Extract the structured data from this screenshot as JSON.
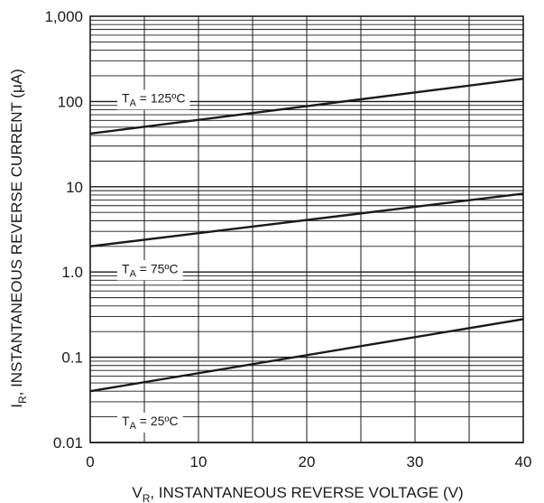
{
  "chart_data": {
    "type": "line",
    "title": "",
    "xlabel": "V",
    "xlabel_sub": "R",
    "xlabel_rest": ", INSTANTANEOUS REVERSE VOLTAGE (V)",
    "ylabel": "I",
    "ylabel_sub": "R",
    "ylabel_rest": ", INSTANTANEOUS REVERSE CURRENT (μA)",
    "xlim": [
      0,
      40
    ],
    "ylim": [
      0.01,
      1000
    ],
    "yscale": "log",
    "grid": true,
    "x_ticks": [
      {
        "value": 0,
        "label": "0"
      },
      {
        "value": 10,
        "label": "10"
      },
      {
        "value": 20,
        "label": "20"
      },
      {
        "value": 30,
        "label": "30"
      },
      {
        "value": 40,
        "label": "40"
      }
    ],
    "y_ticks": [
      {
        "value": 0.01,
        "label": "0.01"
      },
      {
        "value": 0.1,
        "label": "0.1"
      },
      {
        "value": 1,
        "label": "1.0"
      },
      {
        "value": 10,
        "label": "10"
      },
      {
        "value": 100,
        "label": "100"
      },
      {
        "value": 1000,
        "label": "1,000"
      }
    ],
    "series": [
      {
        "name": "T_A = 125ºC",
        "label_main": "T",
        "label_sub": "A",
        "label_rest": " = 125ºC",
        "x": [
          0,
          40
        ],
        "y": [
          42,
          185
        ],
        "label_at": {
          "x": 5,
          "y": 110
        }
      },
      {
        "name": "T_A = 75ºC",
        "label_main": "T",
        "label_sub": "A",
        "label_rest": " = 75ºC",
        "x": [
          0,
          40
        ],
        "y": [
          2.0,
          8.3
        ],
        "label_at": {
          "x": 5,
          "y": 1.1
        }
      },
      {
        "name": "T_A = 25ºC",
        "label_main": "T",
        "label_sub": "A",
        "label_rest": " = 25ºC",
        "x": [
          0,
          40
        ],
        "y": [
          0.04,
          0.28
        ],
        "label_at": {
          "x": 5,
          "y": 0.018
        }
      }
    ]
  }
}
